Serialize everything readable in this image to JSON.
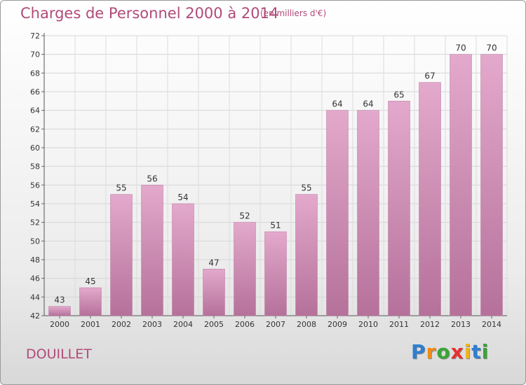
{
  "header": {
    "title": "Charges de Personnel 2000 à 2014",
    "subtitle": "(en milliers d'€)"
  },
  "footer": {
    "commune": "DOUILLET",
    "logo": {
      "letters": [
        "P",
        "r",
        "o",
        "x",
        "i",
        "t",
        "i"
      ],
      "colors": [
        "#2f7fd0",
        "#f08a18",
        "#3aa535",
        "#e5322d",
        "#f0b41e",
        "#2f7fd0",
        "#3aa535"
      ]
    }
  },
  "chart_data": {
    "type": "bar",
    "title": "Charges de Personnel 2000 à 2014",
    "subtitle": "(en milliers d'€)",
    "categories": [
      "2000",
      "2001",
      "2002",
      "2003",
      "2004",
      "2005",
      "2006",
      "2007",
      "2008",
      "2009",
      "2010",
      "2011",
      "2012",
      "2013",
      "2014"
    ],
    "values": [
      43,
      45,
      55,
      56,
      54,
      47,
      52,
      51,
      55,
      64,
      64,
      65,
      67,
      70,
      70
    ],
    "ylim": [
      42,
      72
    ],
    "yticks": [
      42,
      44,
      46,
      48,
      50,
      52,
      54,
      56,
      58,
      60,
      62,
      64,
      66,
      68,
      70,
      72
    ],
    "grid": true,
    "bar_color_top": "#e3a9cc",
    "bar_color_bottom": "#b5719a"
  }
}
